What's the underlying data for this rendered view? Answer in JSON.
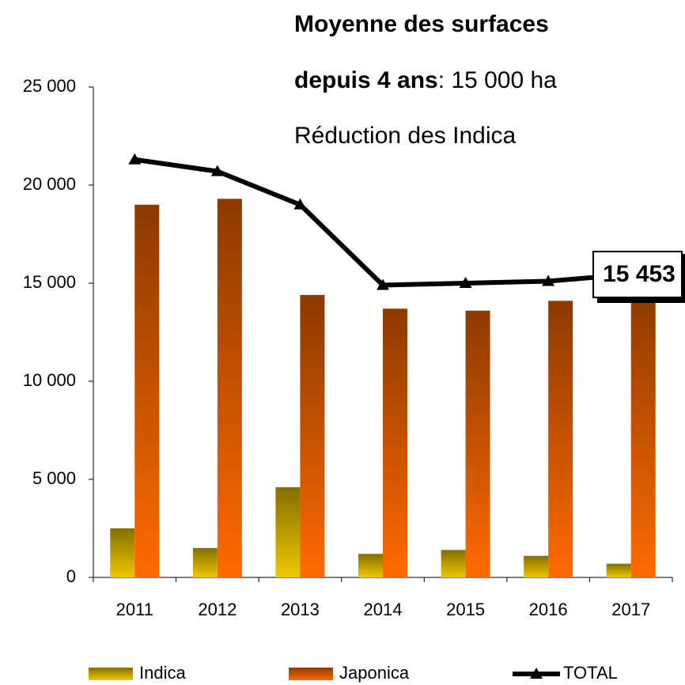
{
  "chart_data": {
    "type": "bar",
    "annotations": [
      "Moyenne des surfaces",
      "depuis 4 ans",
      ": 15 000 ha",
      "Réduction des Indica"
    ],
    "categories": [
      "2011",
      "2012",
      "2013",
      "2014",
      "2015",
      "2016",
      "2017"
    ],
    "series": [
      {
        "name": "Indica",
        "type": "bar",
        "color": "#f0c800",
        "values": [
          2500,
          1500,
          4600,
          1200,
          1400,
          1100,
          700
        ]
      },
      {
        "name": "Japonica",
        "type": "bar",
        "color": "#ff6a00",
        "values": [
          19000,
          19300,
          14400,
          13700,
          13600,
          14100,
          14750
        ]
      },
      {
        "name": "TOTAL",
        "type": "line",
        "color": "#000000",
        "values": [
          21300,
          20700,
          19000,
          14900,
          15000,
          15100,
          15453
        ],
        "value_labels": [
          null,
          null,
          null,
          null,
          null,
          null,
          "15 453"
        ]
      }
    ],
    "ylim": [
      0,
      25000
    ],
    "yticks": [
      0,
      {
        "value": 5000,
        "label": "5 000"
      },
      {
        "value": 10000,
        "label": "10 000"
      },
      {
        "value": 15000,
        "label": "15 000"
      },
      {
        "value": 20000,
        "label": "20 000"
      },
      {
        "value": 25000,
        "label": "25 000"
      }
    ],
    "legend": "bottom"
  }
}
